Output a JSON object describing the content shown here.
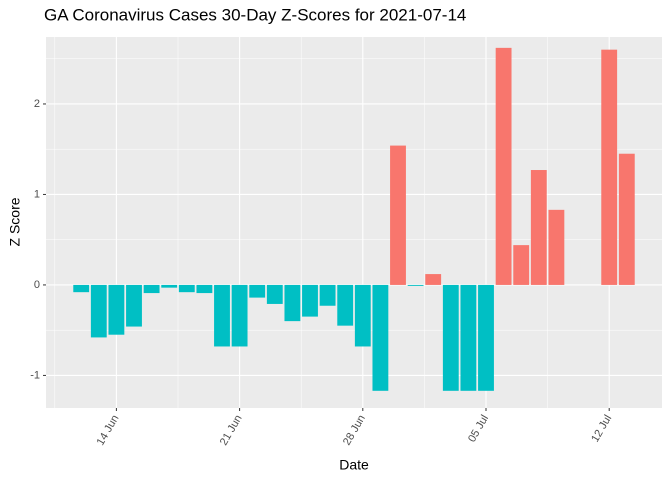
{
  "chart_data": {
    "type": "bar",
    "title": "GA Coronavirus Cases 30-Day Z-Scores for 2021-07-14",
    "x_label": "Date",
    "y_label": "Z Score",
    "x": [
      "2021-06-12",
      "2021-06-13",
      "2021-06-14",
      "2021-06-15",
      "2021-06-16",
      "2021-06-17",
      "2021-06-18",
      "2021-06-19",
      "2021-06-20",
      "2021-06-21",
      "2021-06-22",
      "2021-06-23",
      "2021-06-24",
      "2021-06-25",
      "2021-06-26",
      "2021-06-27",
      "2021-06-28",
      "2021-06-29",
      "2021-06-30",
      "2021-07-01",
      "2021-07-02",
      "2021-07-03",
      "2021-07-04",
      "2021-07-05",
      "2021-07-06",
      "2021-07-07",
      "2021-07-08",
      "2021-07-09",
      "2021-07-10",
      "2021-07-11",
      "2021-07-12",
      "2021-07-13"
    ],
    "values": [
      -0.08,
      -0.58,
      -0.55,
      -0.46,
      -0.09,
      -0.03,
      -0.08,
      -0.09,
      -0.68,
      -0.68,
      -0.14,
      -0.21,
      -0.4,
      -0.35,
      -0.23,
      -0.45,
      -0.68,
      -1.17,
      1.54,
      -0.01,
      0.12,
      -1.17,
      -1.17,
      -1.17,
      2.62,
      0.44,
      1.27,
      0.83,
      null,
      null,
      2.6,
      1.45
    ],
    "color_positive": "#F8766D",
    "color_negative": "#00BFC4",
    "xlim": [
      "2021-06-10",
      "2021-07-15"
    ],
    "xticks": [
      {
        "value": "2021-06-14",
        "label": "14 Jun"
      },
      {
        "value": "2021-06-21",
        "label": "21 Jun"
      },
      {
        "value": "2021-06-28",
        "label": "28 Jun"
      },
      {
        "value": "2021-07-05",
        "label": "05 Jul"
      },
      {
        "value": "2021-07-12",
        "label": "12 Jul"
      }
    ],
    "ylim": [
      -1.36,
      2.74
    ],
    "yticks": [
      -1,
      0,
      1,
      2
    ],
    "grid": true
  }
}
